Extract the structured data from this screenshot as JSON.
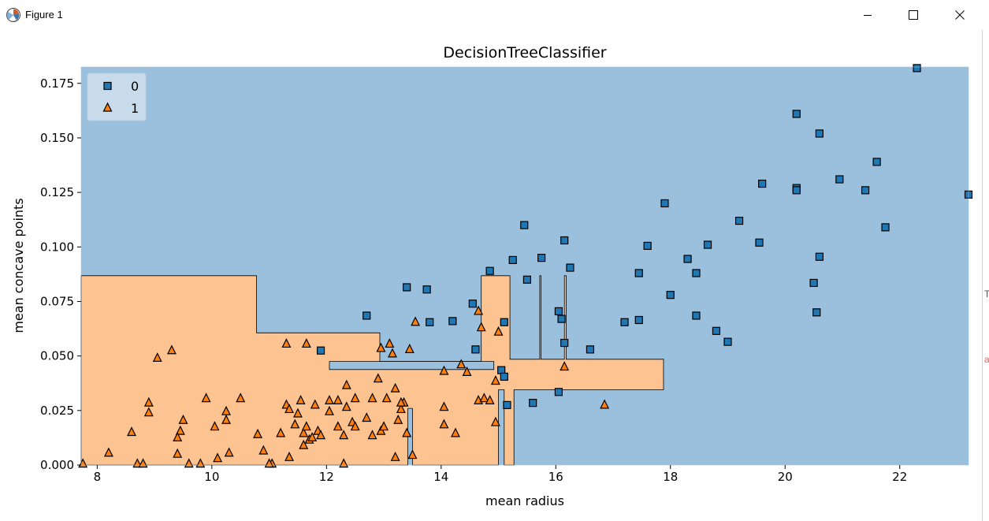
{
  "window": {
    "title": "Figure 1"
  },
  "edge_clips": [
    {
      "text": "T",
      "color": "#555555"
    },
    {
      "text": "a",
      "color": "#e06c6c"
    }
  ],
  "chart_data": {
    "type": "scatter",
    "title": "DecisionTreeClassifier",
    "xlabel": "mean radius",
    "ylabel": "mean concave points",
    "xlim": [
      7.72,
      23.2
    ],
    "ylim": [
      0,
      0.1825
    ],
    "xticks": [
      8,
      10,
      12,
      14,
      16,
      18,
      20,
      22
    ],
    "xtick_labels": [
      "8",
      "10",
      "12",
      "14",
      "16",
      "18",
      "20",
      "22"
    ],
    "yticks": [
      0,
      0.025,
      0.05,
      0.075,
      0.1,
      0.125,
      0.15,
      0.175
    ],
    "ytick_labels": [
      "0.000",
      "0.025",
      "0.050",
      "0.075",
      "0.100",
      "0.125",
      "0.150",
      "0.175"
    ],
    "grid": false,
    "legend_position": "top-left",
    "colors": {
      "class0": "#1f77b4",
      "class1": "#ff7f0e",
      "region0": "#9bc0dd",
      "region1": "#fdc390"
    },
    "decision_regions": {
      "class1": [
        [
          [
            7.72,
            0
          ],
          [
            7.72,
            0.0868
          ],
          [
            10.78,
            0.0868
          ],
          [
            10.78,
            0.0606
          ],
          [
            12.93,
            0.0606
          ],
          [
            12.93,
            0.0475
          ],
          [
            14.7,
            0.0475
          ],
          [
            14.7,
            0.0868
          ],
          [
            15.2,
            0.0868
          ],
          [
            15.2,
            0.0485
          ],
          [
            15.72,
            0.0485
          ],
          [
            15.72,
            0.0868
          ],
          [
            15.74,
            0.0868
          ],
          [
            15.74,
            0.0485
          ],
          [
            16.15,
            0.0485
          ],
          [
            16.15,
            0.0868
          ],
          [
            16.18,
            0.0868
          ],
          [
            16.18,
            0.0485
          ],
          [
            17.88,
            0.0485
          ],
          [
            17.88,
            0.0345
          ],
          [
            15.27,
            0.0345
          ],
          [
            15.27,
            0
          ],
          [
            15.1,
            0
          ],
          [
            15.1,
            0.0345
          ],
          [
            15.0,
            0.0345
          ],
          [
            15.0,
            0
          ],
          [
            13.5,
            0
          ],
          [
            13.5,
            0.026
          ],
          [
            13.42,
            0.026
          ],
          [
            13.42,
            0
          ]
        ]
      ],
      "class0": [
        [
          [
            12.05,
            0.0475
          ],
          [
            12.05,
            0.0438
          ],
          [
            14.92,
            0.0438
          ],
          [
            14.92,
            0.0475
          ]
        ]
      ]
    },
    "series": [
      {
        "name": "0",
        "marker": "square",
        "points": [
          [
            22.3,
            0.182
          ],
          [
            20.2,
            0.161
          ],
          [
            20.6,
            0.152
          ],
          [
            21.6,
            0.139
          ],
          [
            20.95,
            0.131
          ],
          [
            19.6,
            0.129
          ],
          [
            20.2,
            0.127
          ],
          [
            20.2,
            0.126
          ],
          [
            21.4,
            0.126
          ],
          [
            23.2,
            0.124
          ],
          [
            17.9,
            0.12
          ],
          [
            19.2,
            0.112
          ],
          [
            21.75,
            0.109
          ],
          [
            15.45,
            0.11
          ],
          [
            16.15,
            0.103
          ],
          [
            19.55,
            0.102
          ],
          [
            17.6,
            0.1005
          ],
          [
            18.65,
            0.101
          ],
          [
            15.75,
            0.095
          ],
          [
            18.3,
            0.0945
          ],
          [
            15.25,
            0.094
          ],
          [
            20.6,
            0.0955
          ],
          [
            16.25,
            0.0905
          ],
          [
            14.85,
            0.089
          ],
          [
            17.45,
            0.088
          ],
          [
            18.45,
            0.088
          ],
          [
            15.5,
            0.085
          ],
          [
            20.5,
            0.0835
          ],
          [
            13.4,
            0.0815
          ],
          [
            13.75,
            0.0805
          ],
          [
            18.0,
            0.078
          ],
          [
            14.55,
            0.074
          ],
          [
            16.05,
            0.0705
          ],
          [
            20.55,
            0.07
          ],
          [
            12.7,
            0.0685
          ],
          [
            18.45,
            0.0685
          ],
          [
            16.1,
            0.067
          ],
          [
            13.8,
            0.0655
          ],
          [
            14.2,
            0.066
          ],
          [
            15.1,
            0.0655
          ],
          [
            17.2,
            0.0655
          ],
          [
            17.45,
            0.0665
          ],
          [
            18.8,
            0.0615
          ],
          [
            19.0,
            0.0565
          ],
          [
            16.15,
            0.056
          ],
          [
            14.6,
            0.053
          ],
          [
            16.6,
            0.053
          ],
          [
            11.9,
            0.0525
          ],
          [
            15.05,
            0.0435
          ],
          [
            15.1,
            0.0405
          ],
          [
            15.6,
            0.0285
          ],
          [
            16.05,
            0.0335
          ],
          [
            15.15,
            0.0275
          ]
        ]
      },
      {
        "name": "1",
        "marker": "triangle",
        "points": [
          [
            9.3,
            0.0525
          ],
          [
            9.05,
            0.049
          ],
          [
            11.3,
            0.0555
          ],
          [
            11.65,
            0.0555
          ],
          [
            12.95,
            0.0535
          ],
          [
            13.1,
            0.0555
          ],
          [
            13.15,
            0.051
          ],
          [
            13.55,
            0.0655
          ],
          [
            13.45,
            0.053
          ],
          [
            14.65,
            0.0705
          ],
          [
            14.7,
            0.063
          ],
          [
            15.0,
            0.061
          ],
          [
            14.05,
            0.043
          ],
          [
            14.35,
            0.046
          ],
          [
            14.45,
            0.0425
          ],
          [
            16.15,
            0.045
          ],
          [
            14.95,
            0.0385
          ],
          [
            12.35,
            0.0365
          ],
          [
            12.9,
            0.0395
          ],
          [
            13.2,
            0.035
          ],
          [
            8.9,
            0.0285
          ],
          [
            8.9,
            0.024
          ],
          [
            9.5,
            0.0205
          ],
          [
            9.9,
            0.0305
          ],
          [
            10.25,
            0.0245
          ],
          [
            10.25,
            0.0205
          ],
          [
            10.5,
            0.0305
          ],
          [
            10.05,
            0.0175
          ],
          [
            9.45,
            0.0155
          ],
          [
            9.4,
            0.0125
          ],
          [
            8.6,
            0.015
          ],
          [
            8.2,
            0.0055
          ],
          [
            8.7,
            0.0005
          ],
          [
            8.8,
            0.0005
          ],
          [
            9.4,
            0.005
          ],
          [
            9.8,
            0.0005
          ],
          [
            10.1,
            0.003
          ],
          [
            10.3,
            0.0055
          ],
          [
            10.8,
            0.014
          ],
          [
            10.9,
            0.0065
          ],
          [
            11.2,
            0.0145
          ],
          [
            11.3,
            0.0275
          ],
          [
            11.35,
            0.0255
          ],
          [
            11.5,
            0.0235
          ],
          [
            11.55,
            0.0295
          ],
          [
            11.45,
            0.0185
          ],
          [
            11.6,
            0.0145
          ],
          [
            11.65,
            0.0175
          ],
          [
            11.7,
            0.0115
          ],
          [
            11.75,
            0.0125
          ],
          [
            11.8,
            0.0275
          ],
          [
            11.85,
            0.0155
          ],
          [
            11.9,
            0.0135
          ],
          [
            11.6,
            0.009
          ],
          [
            11.35,
            0.0035
          ],
          [
            11.05,
            0.0005
          ],
          [
            12.05,
            0.0295
          ],
          [
            12.05,
            0.0245
          ],
          [
            12.2,
            0.0295
          ],
          [
            12.2,
            0.0175
          ],
          [
            12.3,
            0.0135
          ],
          [
            12.35,
            0.0265
          ],
          [
            12.45,
            0.0195
          ],
          [
            12.5,
            0.0175
          ],
          [
            12.5,
            0.0305
          ],
          [
            12.7,
            0.0215
          ],
          [
            12.8,
            0.0305
          ],
          [
            12.8,
            0.0135
          ],
          [
            12.95,
            0.0155
          ],
          [
            13.0,
            0.0175
          ],
          [
            13.05,
            0.0305
          ],
          [
            13.25,
            0.0205
          ],
          [
            13.3,
            0.0255
          ],
          [
            13.35,
            0.0285
          ],
          [
            13.3,
            0.0285
          ],
          [
            13.4,
            0.0145
          ],
          [
            13.2,
            0.0035
          ],
          [
            13.5,
            0.0045
          ],
          [
            12.3,
            0.0005
          ],
          [
            14.05,
            0.0265
          ],
          [
            14.05,
            0.0185
          ],
          [
            14.25,
            0.0145
          ],
          [
            14.65,
            0.0295
          ],
          [
            14.75,
            0.0305
          ],
          [
            14.85,
            0.0295
          ],
          [
            14.95,
            0.0195
          ],
          [
            16.85,
            0.0275
          ],
          [
            7.75,
            0.0005
          ],
          [
            9.6,
            0.0005
          ],
          [
            11.0,
            0.0005
          ]
        ]
      }
    ]
  }
}
